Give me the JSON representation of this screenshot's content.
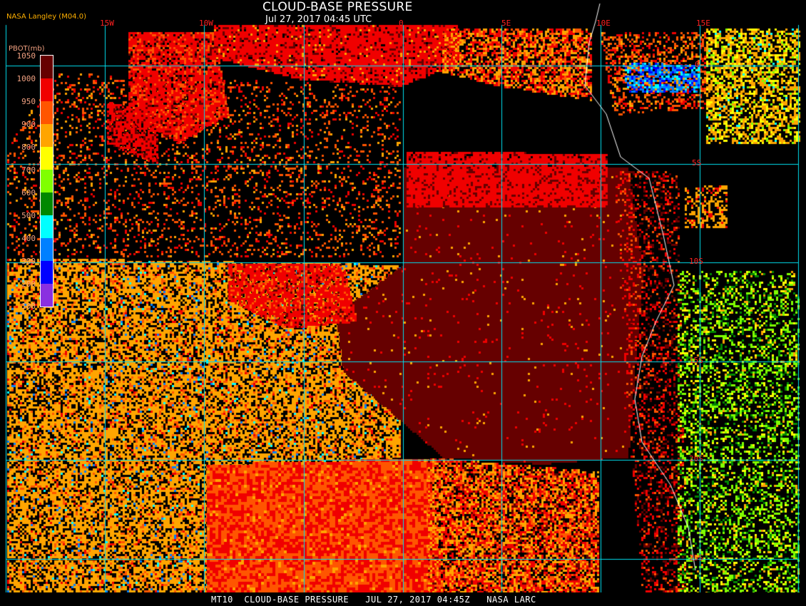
{
  "header": {
    "title": "CLOUD-BASE PRESSURE",
    "timestamp": "Jul 27, 2017 04:45 UTC",
    "source": "NASA Langley (M04.0)"
  },
  "legend": {
    "title": "PBOT(mb)",
    "ticks": [
      "1050",
      "1000",
      "950",
      "900",
      "800",
      "700",
      "600",
      "500",
      "400",
      "300",
      "200",
      "100"
    ],
    "colors": [
      "#8a30e0",
      "#0000ff",
      "#0080ff",
      "#00ffff",
      "#008800",
      "#80ff00",
      "#ffff00",
      "#ffa500",
      "#ff5500",
      "#f00000",
      "#660000"
    ]
  },
  "grid": {
    "longitudes": [
      "15W",
      "10W",
      "0",
      "5E",
      "10E",
      "15E"
    ],
    "latitudes": [
      "0",
      "5S",
      "10S",
      "15S",
      "20S",
      "25S"
    ],
    "line_color": "#00e0f0",
    "label_color": "#ff2020"
  },
  "footer": {
    "text": "MT10  CLOUD-BASE PRESSURE   JUL 27, 2017 04:45Z   NASA LARC"
  }
}
